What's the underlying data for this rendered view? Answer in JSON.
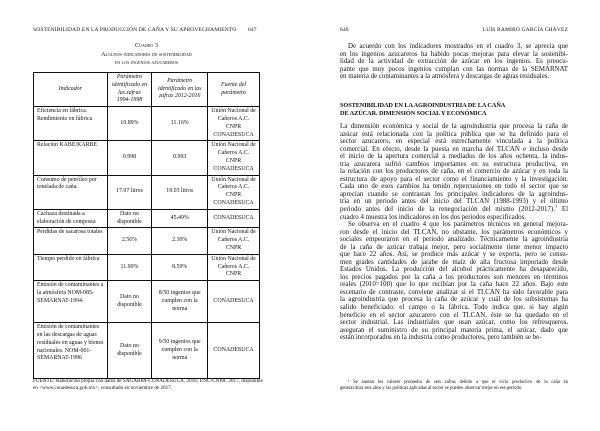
{
  "left_page": {
    "running_head": "SOSTENIBILIDAD EN LA PRODUCCIÓN DE CAÑA Y SU APROVECHAMIENTO",
    "page_number": "647",
    "table_label": "Cuadro 3",
    "table_title_1": "Algunos indicadores de sostenibilidad",
    "table_title_2": "en los ingenios azucareros",
    "table": {
      "headers": [
        "Indicador",
        "Parámetro identificado en las zafras 1994-1998",
        "Parámetro identificado en las zafras 2012-2016",
        "Fuente del parámetro"
      ],
      "rows": [
        [
          "Eficiencia en fábrica. Rendimiento en fábrica",
          "10.89%",
          "11.16%",
          "Unión Nacional de Cañeros A.C. CNPR CONADESUCA"
        ],
        [
          "Relación KABE/KARBE",
          "0.998",
          "0.993",
          "Unión Nacional de Cañeros A.C. CNPR CONADESUCA"
        ],
        [
          "Consumo de petróleo por tonelada de caña.",
          "17.97 litros",
          "19.03 litros",
          "Unión Nacional de Cañeros A.C. CNPR CONADESUCA"
        ],
        [
          "Cachaza destinada a elaboración de composta",
          "Dato no disponible",
          "45.49%",
          "CONADESUCA"
        ],
        [
          "Pérdidas de sacarosa totales",
          "2.56%",
          "2.30%",
          "Unión Nacional de Cañeros A.C. CNPR"
        ],
        [
          "Tiempo perdido en fábrica",
          "11.90%",
          "8.59%",
          "Unión Nacional de Cañeros A.C. CNPR"
        ],
        [
          "Emisión de contaminantes a la atmósfera NOM-085-SEMARNAT-1994.",
          "Dato no disponible",
          "8/50 ingenios que cumplen con la norma",
          "CONADESUCA"
        ],
        [
          "Emisión de contaminantes en las descargas de aguas residuales en aguas y bienes nacionales. NOM-001-SEMARNAT-1996",
          "Dato no disponible",
          "9/50 ingenios que cumplen con la norma",
          "CONADESUCA"
        ]
      ]
    },
    "source_note": "FUENTE: elaboración propia con datos de SAGARPA-CONADESUCA, 2016; UNC-CNPR, 2017, disponible en <www.conadesuca.gob.mx>, consultado en noviembre de 2017."
  },
  "right_page": {
    "page_number": "648",
    "running_head": "LUIS RAMIRO GARCÍA CHÁVEZ",
    "para1": [
      "De acuerdo con los indicadores mostrados en el cuadro 3, se aprecia que",
      "en los ingenios azucareros ha habido pocas mejoras para elevar la sostenibi-",
      "lidad de la actividad de extracción de azúcar en los ingenios. Es preocu-",
      "pante que muy pocos ingenios cumplan con las normas de la SEMARNAT",
      "en materia de contaminantes a la atmósfera y descargas de aguas residuales."
    ],
    "section_heading_1": "SOSTENIBILIDAD EN LA AGROINDUSTRIA DE LA CAÑA",
    "section_heading_2": "DE AZÚCAR. DIMENSIÓN SOCIAL Y ECONÓMICA",
    "para2": [
      "La dimensión económica y social de la agroindustria que procesa la caña de",
      "azúcar está relacionada con la política pública que se ha definido para el",
      "sector azucarero, en especial está estrechamente vinculada a la política",
      "comercial. En efecto, desde la puesta en marcha del TLCAN e incluso desde",
      "el inicio de la apertura comercial a mediados de los años ochenta, la indus-",
      "tria azucarera sufrió cambios importantes en su estructura productiva, en",
      "la relación con los productores de caña, en el comercio de azúcar y en toda la",
      "estructura de apoyo para el sector como el financiamiento y la investigación.",
      "Cada uno de esos cambios ha tenido repercusiones en todo el sector que se",
      "aprecian cuando se contrastan los principales indicadores de la agroindus-",
      "tria en un periodo antes del inicio del TLCAN (1988-1993) y el último",
      "periodo antes del inicio de la renegociación del mismo (2012-2017).",
      "cuadro 4 muestra los indicadores en los dos periodos especificados."
    ],
    "para2_footnote_mark": "1",
    "para2_line12_tail": " El",
    "para3": [
      "Se observa en el cuadro 4 que los parámetros técnicos en general mejora-",
      "ron desde el inicio del TLCAN, no obstante, los parámetros económicos y",
      "sociales empeoraron en el periodo analizado. Técnicamente la agroindustria",
      "de la caña de azúcar trabaja mejor, pero socialmente tiene menor impacto",
      "que hace 22 años. Así, se produce más azúcar y se exporta, pero se consu-",
      "men grades cantidades de jarabe de maíz de alta fructosa importado desde",
      "Estados Unidos. La producción del alcohol prácticamente ha desaparecido,",
      "los precios pagados por la caña a los productores son menores en términos",
      "reales (2010=100) que lo que recibían por la caña hace 22 años. Bajo este",
      "escenario de contraste, conviene analizar si el TLCAN ha sido favorable para",
      "la agroindustria que procesa la caña de azúcar y cuál de los subsistemas ha",
      "salido beneficiado: el campo o la fábrica. Todo indica que, si hay algún",
      "beneficio en el sector azucarero con el TLCAN, éste se ha quedado en el",
      "sector industrial. Las industriales que usan azúcar, como los refresqueros,",
      "aseguran el suministro de su principal materia prima, el azúcar, dado que",
      "están incorporados en la industria como productores, pero también se be-"
    ],
    "footnote": [
      "¹ Se anotan los valores promedio de seis zafras debido a que el ciclo productivo de la caña en",
      "general dura seis años y las políticas aplicadas al sector se pueden observar mejor en ese periodo."
    ]
  }
}
